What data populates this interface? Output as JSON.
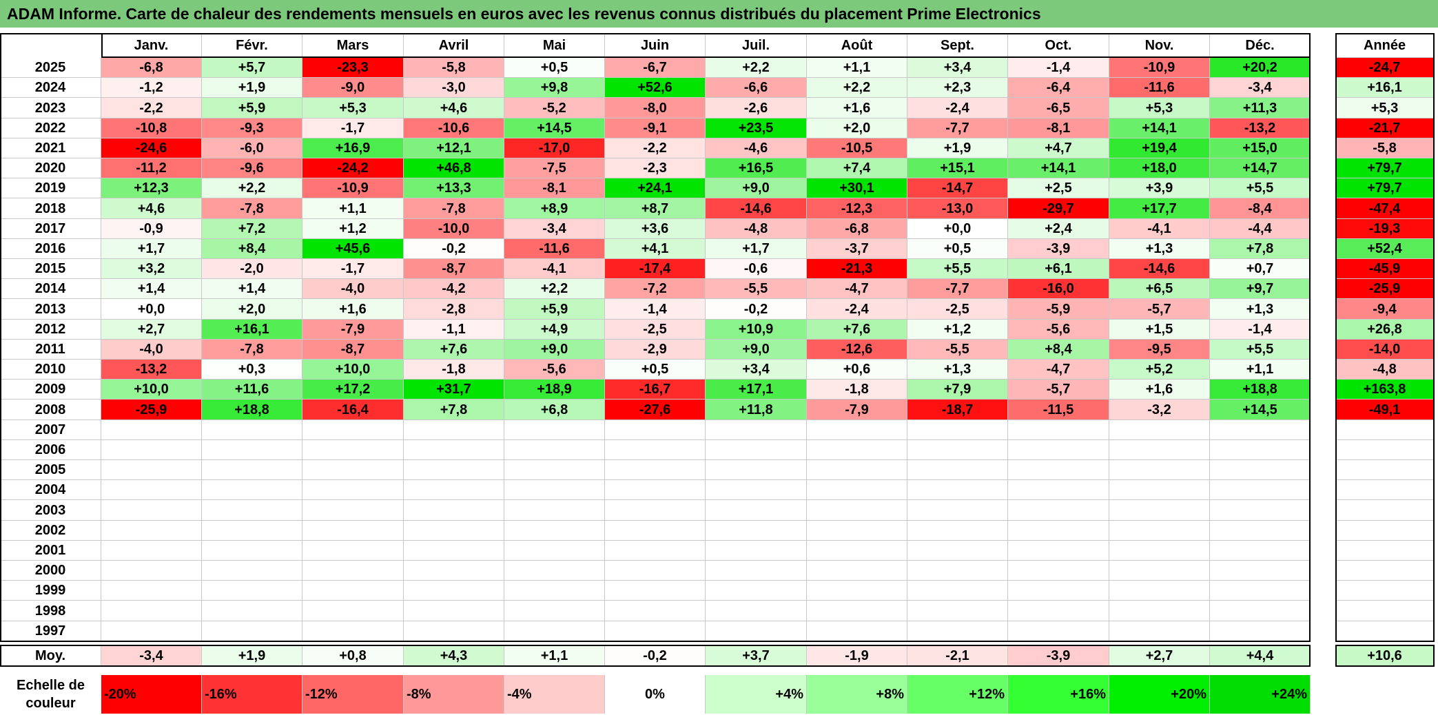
{
  "title": "ADAM Informe. Carte de chaleur des rendements mensuels en euros avec les revenus connus distribués du placement Prime Electronics",
  "chart_data": {
    "type": "heatmap",
    "months": [
      "Janv.",
      "Févr.",
      "Mars",
      "Avril",
      "Mai",
      "Juin",
      "Juil.",
      "Août",
      "Sept.",
      "Oct.",
      "Nov.",
      "Déc."
    ],
    "year_header": "Année",
    "avg_label": "Moy.",
    "scale_label": "Echelle de couleur",
    "rows": [
      {
        "year": "2025",
        "values": [
          "-6,8",
          "+5,7",
          "-23,3",
          "-5,8",
          "+0,5",
          "-6,7",
          "+2,2",
          "+1,1",
          "+3,4",
          "-1,4",
          "-10,9",
          "+20,2"
        ],
        "annual": "-24,7"
      },
      {
        "year": "2024",
        "values": [
          "-1,2",
          "+1,9",
          "-9,0",
          "-3,0",
          "+9,8",
          "+52,6",
          "-6,6",
          "+2,2",
          "+2,3",
          "-6,4",
          "-11,6",
          "-3,4"
        ],
        "annual": "+16,1"
      },
      {
        "year": "2023",
        "values": [
          "-2,2",
          "+5,9",
          "+5,3",
          "+4,6",
          "-5,2",
          "-8,0",
          "-2,6",
          "+1,6",
          "-2,4",
          "-6,5",
          "+5,3",
          "+11,3"
        ],
        "annual": "+5,3"
      },
      {
        "year": "2022",
        "values": [
          "-10,8",
          "-9,3",
          "-1,7",
          "-10,6",
          "+14,5",
          "-9,1",
          "+23,5",
          "+2,0",
          "-7,7",
          "-8,1",
          "+14,1",
          "-13,2"
        ],
        "annual": "-21,7"
      },
      {
        "year": "2021",
        "values": [
          "-24,6",
          "-6,0",
          "+16,9",
          "+12,1",
          "-17,0",
          "-2,2",
          "-4,6",
          "-10,5",
          "+1,9",
          "+4,7",
          "+19,4",
          "+15,0"
        ],
        "annual": "-5,8"
      },
      {
        "year": "2020",
        "values": [
          "-11,2",
          "-9,6",
          "-24,2",
          "+46,8",
          "-7,5",
          "-2,3",
          "+16,5",
          "+7,4",
          "+15,1",
          "+14,1",
          "+18,0",
          "+14,7"
        ],
        "annual": "+79,7"
      },
      {
        "year": "2019",
        "values": [
          "+12,3",
          "+2,2",
          "-10,9",
          "+13,3",
          "-8,1",
          "+24,1",
          "+9,0",
          "+30,1",
          "-14,7",
          "+2,5",
          "+3,9",
          "+5,5"
        ],
        "annual": "+79,7"
      },
      {
        "year": "2018",
        "values": [
          "+4,6",
          "-7,8",
          "+1,1",
          "-7,8",
          "+8,9",
          "+8,7",
          "-14,6",
          "-12,3",
          "-13,0",
          "-29,7",
          "+17,7",
          "-8,4"
        ],
        "annual": "-47,4"
      },
      {
        "year": "2017",
        "values": [
          "-0,9",
          "+7,2",
          "+1,2",
          "-10,0",
          "-3,4",
          "+3,6",
          "-4,8",
          "-6,8",
          "+0,0",
          "+2,4",
          "-4,1",
          "-4,4"
        ],
        "annual": "-19,3"
      },
      {
        "year": "2016",
        "values": [
          "+1,7",
          "+8,4",
          "+45,6",
          "-0,2",
          "-11,6",
          "+4,1",
          "+1,7",
          "-3,7",
          "+0,5",
          "-3,9",
          "+1,3",
          "+7,8"
        ],
        "annual": "+52,4"
      },
      {
        "year": "2015",
        "values": [
          "+3,2",
          "-2,0",
          "-1,7",
          "-8,7",
          "-4,1",
          "-17,4",
          "-0,6",
          "-21,3",
          "+5,5",
          "+6,1",
          "-14,6",
          "+0,7"
        ],
        "annual": "-45,9"
      },
      {
        "year": "2014",
        "values": [
          "+1,4",
          "+1,4",
          "-4,0",
          "-4,2",
          "+2,2",
          "-7,2",
          "-5,5",
          "-4,7",
          "-7,7",
          "-16,0",
          "+6,5",
          "+9,7"
        ],
        "annual": "-25,9"
      },
      {
        "year": "2013",
        "values": [
          "+0,0",
          "+2,0",
          "+1,6",
          "-2,8",
          "+5,9",
          "-1,4",
          "-0,2",
          "-2,4",
          "-2,5",
          "-5,9",
          "-5,7",
          "+1,3"
        ],
        "annual": "-9,4"
      },
      {
        "year": "2012",
        "values": [
          "+2,7",
          "+16,1",
          "-7,9",
          "-1,1",
          "+4,9",
          "-2,5",
          "+10,9",
          "+7,6",
          "+1,2",
          "-5,6",
          "+1,5",
          "-1,4"
        ],
        "annual": "+26,8"
      },
      {
        "year": "2011",
        "values": [
          "-4,0",
          "-7,8",
          "-8,7",
          "+7,6",
          "+9,0",
          "-2,9",
          "+9,0",
          "-12,6",
          "-5,5",
          "+8,4",
          "-9,5",
          "+5,5"
        ],
        "annual": "-14,0"
      },
      {
        "year": "2010",
        "values": [
          "-13,2",
          "+0,3",
          "+10,0",
          "-1,8",
          "-5,6",
          "+0,5",
          "+3,4",
          "+0,6",
          "+1,3",
          "-4,7",
          "+5,2",
          "+1,1"
        ],
        "annual": "-4,8"
      },
      {
        "year": "2009",
        "values": [
          "+10,0",
          "+11,6",
          "+17,2",
          "+31,7",
          "+18,9",
          "-16,7",
          "+17,1",
          "-1,8",
          "+7,9",
          "-5,7",
          "+1,6",
          "+18,8"
        ],
        "annual": "+163,8"
      },
      {
        "year": "2008",
        "values": [
          "-25,9",
          "+18,8",
          "-16,4",
          "+7,8",
          "+6,8",
          "-27,6",
          "+11,8",
          "-7,9",
          "-18,7",
          "-11,5",
          "-3,2",
          "+14,5"
        ],
        "annual": "-49,1"
      },
      {
        "year": "2007",
        "values": [
          "",
          "",
          "",
          "",
          "",
          "",
          "",
          "",
          "",
          "",
          "",
          ""
        ],
        "annual": ""
      },
      {
        "year": "2006",
        "values": [
          "",
          "",
          "",
          "",
          "",
          "",
          "",
          "",
          "",
          "",
          "",
          ""
        ],
        "annual": ""
      },
      {
        "year": "2005",
        "values": [
          "",
          "",
          "",
          "",
          "",
          "",
          "",
          "",
          "",
          "",
          "",
          ""
        ],
        "annual": ""
      },
      {
        "year": "2004",
        "values": [
          "",
          "",
          "",
          "",
          "",
          "",
          "",
          "",
          "",
          "",
          "",
          ""
        ],
        "annual": ""
      },
      {
        "year": "2003",
        "values": [
          "",
          "",
          "",
          "",
          "",
          "",
          "",
          "",
          "",
          "",
          "",
          ""
        ],
        "annual": ""
      },
      {
        "year": "2002",
        "values": [
          "",
          "",
          "",
          "",
          "",
          "",
          "",
          "",
          "",
          "",
          "",
          ""
        ],
        "annual": ""
      },
      {
        "year": "2001",
        "values": [
          "",
          "",
          "",
          "",
          "",
          "",
          "",
          "",
          "",
          "",
          "",
          ""
        ],
        "annual": ""
      },
      {
        "year": "2000",
        "values": [
          "",
          "",
          "",
          "",
          "",
          "",
          "",
          "",
          "",
          "",
          "",
          ""
        ],
        "annual": ""
      },
      {
        "year": "1999",
        "values": [
          "",
          "",
          "",
          "",
          "",
          "",
          "",
          "",
          "",
          "",
          "",
          ""
        ],
        "annual": ""
      },
      {
        "year": "1998",
        "values": [
          "",
          "",
          "",
          "",
          "",
          "",
          "",
          "",
          "",
          "",
          "",
          ""
        ],
        "annual": ""
      },
      {
        "year": "1997",
        "values": [
          "",
          "",
          "",
          "",
          "",
          "",
          "",
          "",
          "",
          "",
          "",
          ""
        ],
        "annual": ""
      }
    ],
    "averages": [
      "-3,4",
      "+1,9",
      "+0,8",
      "+4,3",
      "+1,1",
      "-0,2",
      "+3,7",
      "-1,9",
      "-2,1",
      "-3,9",
      "+2,7",
      "+4,4"
    ],
    "average_annual": "+10,6",
    "scale": [
      {
        "label": "-20%",
        "color": "#ff0000"
      },
      {
        "label": "-16%",
        "color": "#ff3333"
      },
      {
        "label": "-12%",
        "color": "#ff6666"
      },
      {
        "label": "-8%",
        "color": "#ff9999"
      },
      {
        "label": "-4%",
        "color": "#ffcccc"
      },
      {
        "label": "0%",
        "color": "#ffffff"
      },
      {
        "label": "+4%",
        "color": "#ccffcc"
      },
      {
        "label": "+8%",
        "color": "#99ff99"
      },
      {
        "label": "+12%",
        "color": "#66ff66"
      },
      {
        "label": "+16%",
        "color": "#33ff33"
      },
      {
        "label": "+20%",
        "color": "#00ee00"
      },
      {
        "label": "+24%",
        "color": "#00dd00"
      }
    ]
  }
}
